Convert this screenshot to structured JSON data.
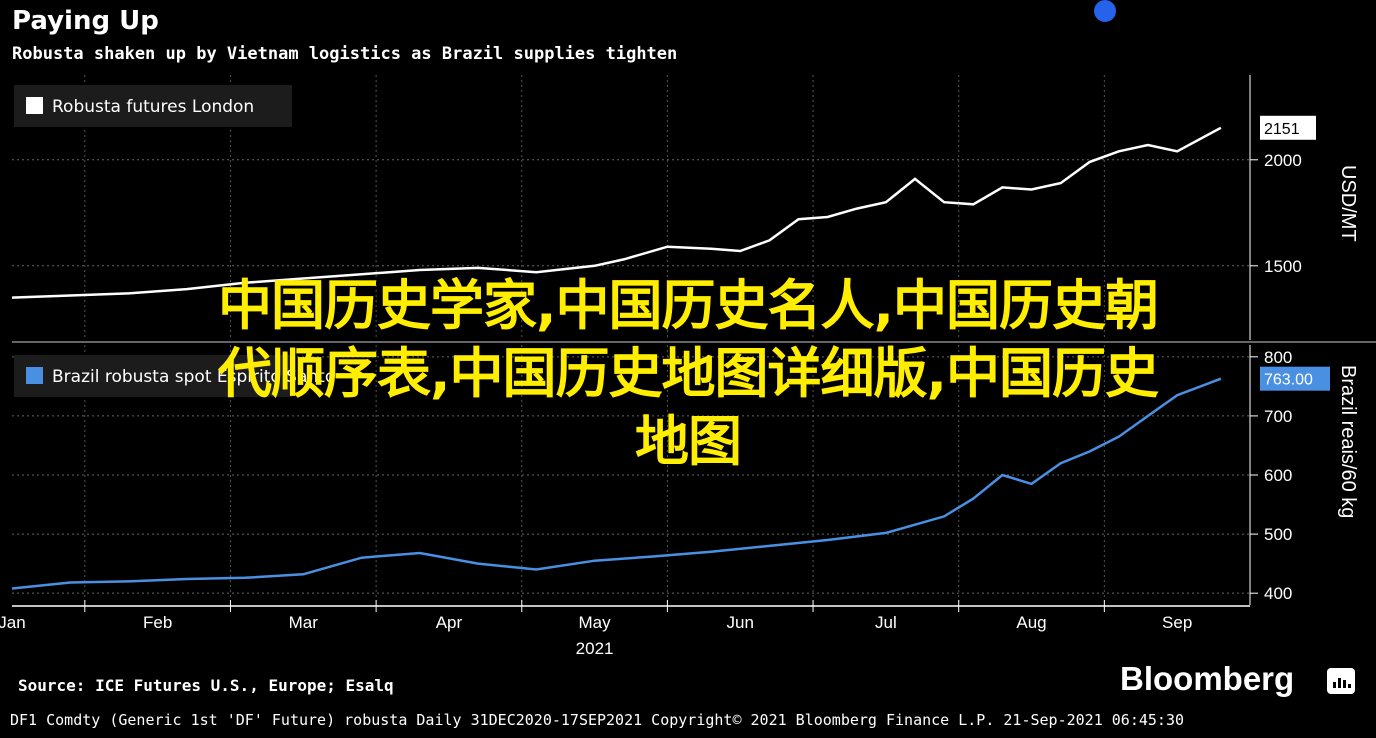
{
  "header": {
    "title": "Paying Up",
    "subtitle": "Robusta shaken up by Vietnam logistics as Brazil supplies tighten"
  },
  "overlay": {
    "line1": "中国历史学家,中国历史名人,中国历史朝",
    "line2": "代顺序表,中国历史地图详细版,中国历史",
    "line3": "地图"
  },
  "footer": {
    "source": "Source: ICE Futures U.S., Europe; Esalq",
    "brand": "Bloomberg",
    "meta": "DF1 Comdty (Generic 1st 'DF' Future) robusta  Daily 31DEC2020-17SEP2021  Copyright© 2021 Bloomberg Finance L.P.  21-Sep-2021 06:45:30"
  },
  "colors": {
    "background": "#000000",
    "top_series": "#ffffff",
    "bottom_series": "#4a90e2",
    "overlay_text": "#ffee00"
  },
  "chart_data": [
    {
      "type": "line",
      "legend": "Robusta futures London",
      "ylabel": "USD/MT",
      "yticks": [
        1500,
        2000
      ],
      "ylim": [
        1150,
        2400
      ],
      "last_value_label": "2151",
      "x_tick_labels": [
        "Jan",
        "Feb",
        "Mar",
        "Apr",
        "May",
        "Jun",
        "Jul",
        "Aug",
        "Sep"
      ],
      "x_year_label": "2021",
      "series": [
        {
          "name": "Robusta futures London",
          "x": [
            0,
            0.4,
            0.8,
            1.2,
            1.6,
            2.0,
            2.4,
            2.8,
            3.2,
            3.6,
            4.0,
            4.2,
            4.5,
            4.8,
            5.0,
            5.2,
            5.4,
            5.6,
            5.8,
            6.0,
            6.2,
            6.4,
            6.6,
            6.8,
            7.0,
            7.2,
            7.4,
            7.6,
            7.8,
            8.0,
            8.3
          ],
          "values": [
            1350,
            1360,
            1370,
            1390,
            1420,
            1440,
            1460,
            1480,
            1490,
            1470,
            1500,
            1530,
            1590,
            1580,
            1570,
            1620,
            1720,
            1730,
            1770,
            1800,
            1910,
            1800,
            1790,
            1870,
            1860,
            1890,
            1990,
            2040,
            2070,
            2040,
            2151
          ]
        }
      ]
    },
    {
      "type": "line",
      "legend": "Brazil robusta spot Espirito Santo",
      "ylabel": "Brazil reais/60 kg",
      "yticks": [
        400,
        500,
        600,
        700,
        800
      ],
      "ylim": [
        380,
        820
      ],
      "last_value_label": "763.00",
      "x_tick_labels": [
        "Jan",
        "Feb",
        "Mar",
        "Apr",
        "May",
        "Jun",
        "Jul",
        "Aug",
        "Sep"
      ],
      "series": [
        {
          "name": "Brazil robusta spot Espirito Santo",
          "x": [
            0,
            0.4,
            0.8,
            1.2,
            1.6,
            2.0,
            2.4,
            2.8,
            3.2,
            3.6,
            4.0,
            4.4,
            4.8,
            5.2,
            5.6,
            6.0,
            6.4,
            6.6,
            6.8,
            7.0,
            7.2,
            7.4,
            7.6,
            7.8,
            8.0,
            8.3
          ],
          "values": [
            408,
            418,
            420,
            424,
            426,
            432,
            460,
            468,
            450,
            440,
            455,
            462,
            470,
            480,
            490,
            502,
            530,
            560,
            600,
            585,
            620,
            640,
            665,
            700,
            735,
            763
          ]
        }
      ]
    }
  ]
}
